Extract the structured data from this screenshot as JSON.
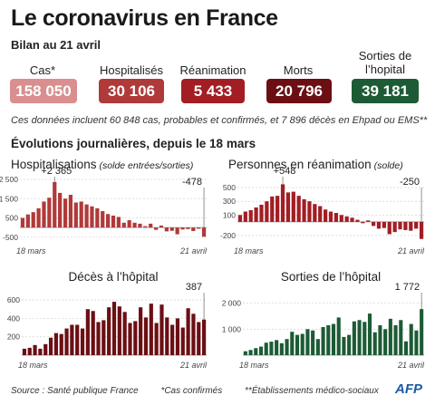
{
  "header": {
    "title": "Le coronavirus en France",
    "subtitle": "Bilan au 21 avril"
  },
  "stats": [
    {
      "label": "Cas*",
      "value": "158 050",
      "color": "#d98f8f"
    },
    {
      "label": "Hospitalisés",
      "value": "30 106",
      "color": "#b03a3a"
    },
    {
      "label": "Réanimation",
      "value": "5 433",
      "color": "#a31d24"
    },
    {
      "label": "Morts",
      "value": "20 796",
      "color": "#6b0f14"
    },
    {
      "label": "Sorties de l’hopital",
      "value": "39 181",
      "color": "#1c5b35"
    }
  ],
  "note": "Ces données incluent 60 848 cas, probables et confirmés, et 7 896 décès en Ehpad ou EMS**",
  "daily_title": "Évolutions journalières, depuis le 18 mars",
  "footer": {
    "source": "Source : Santé publique France",
    "note1": "*Cas confirmés",
    "note2": "**Établissements médico-sociaux",
    "logo": "AFP"
  },
  "chart_data": [
    {
      "type": "bar",
      "title": "Hospitalisations",
      "title_note": "(solde entrées/sorties)",
      "color": "#b03a3a",
      "x_start": "18 mars",
      "x_end": "21 avril",
      "yticks": [
        "2 500",
        "1 500",
        "500",
        "-500"
      ],
      "ylim": [
        -700,
        2500
      ],
      "annotations": [
        {
          "index": 6,
          "text": "+2 365"
        },
        {
          "index": 34,
          "text": "-478"
        }
      ],
      "values": [
        500,
        680,
        800,
        1000,
        1350,
        1550,
        2365,
        1800,
        1500,
        1700,
        1300,
        1350,
        1200,
        1100,
        1000,
        850,
        700,
        620,
        550,
        250,
        380,
        250,
        200,
        70,
        200,
        -120,
        100,
        -200,
        -170,
        -350,
        -100,
        -80,
        -180,
        -60,
        -478
      ]
    },
    {
      "type": "bar",
      "title": "Personnes en réanimation",
      "title_note": "(solde)",
      "color": "#a31d24",
      "x_start": "18 mars",
      "x_end": "21 avril",
      "yticks": [
        "500",
        "300",
        "100",
        "-200"
      ],
      "ylim": [
        -280,
        620
      ],
      "annotations": [
        {
          "index": 8,
          "text": "+548"
        },
        {
          "index": 34,
          "text": "-250"
        }
      ],
      "values": [
        100,
        150,
        170,
        210,
        250,
        300,
        370,
        380,
        548,
        430,
        440,
        380,
        330,
        300,
        260,
        230,
        180,
        150,
        130,
        100,
        80,
        60,
        30,
        -20,
        20,
        -60,
        -100,
        -90,
        -180,
        -150,
        -110,
        -120,
        -130,
        -100,
        -250
      ]
    },
    {
      "type": "bar",
      "title": "Décès à l’hôpital",
      "title_note": "",
      "color": "#6b0f14",
      "x_start": "18 mars",
      "x_end": "21 avril",
      "yticks": [
        "600",
        "400",
        "200"
      ],
      "ylim": [
        0,
        650
      ],
      "annotations": [
        {
          "index": 34,
          "text": "387"
        }
      ],
      "values": [
        70,
        80,
        110,
        70,
        120,
        190,
        240,
        230,
        290,
        330,
        330,
        290,
        500,
        480,
        360,
        380,
        520,
        580,
        530,
        470,
        350,
        370,
        520,
        410,
        560,
        350,
        550,
        410,
        330,
        400,
        300,
        510,
        450,
        360,
        387
      ]
    },
    {
      "type": "bar",
      "title": "Sorties de l’hôpital",
      "title_note": "",
      "color": "#1c5b35",
      "x_start": "18 mars",
      "x_end": "21 avril",
      "yticks": [
        "2 000",
        "1 000"
      ],
      "ylim": [
        0,
        2300
      ],
      "annotations": [
        {
          "index": 34,
          "text": "1 772"
        }
      ],
      "values": [
        150,
        200,
        270,
        330,
        480,
        520,
        580,
        460,
        620,
        900,
        780,
        820,
        1000,
        950,
        620,
        1080,
        1150,
        1200,
        1450,
        700,
        780,
        1300,
        1350,
        1280,
        1600,
        880,
        1150,
        1000,
        1400,
        1150,
        1350,
        530,
        1200,
        950,
        1772
      ]
    }
  ]
}
